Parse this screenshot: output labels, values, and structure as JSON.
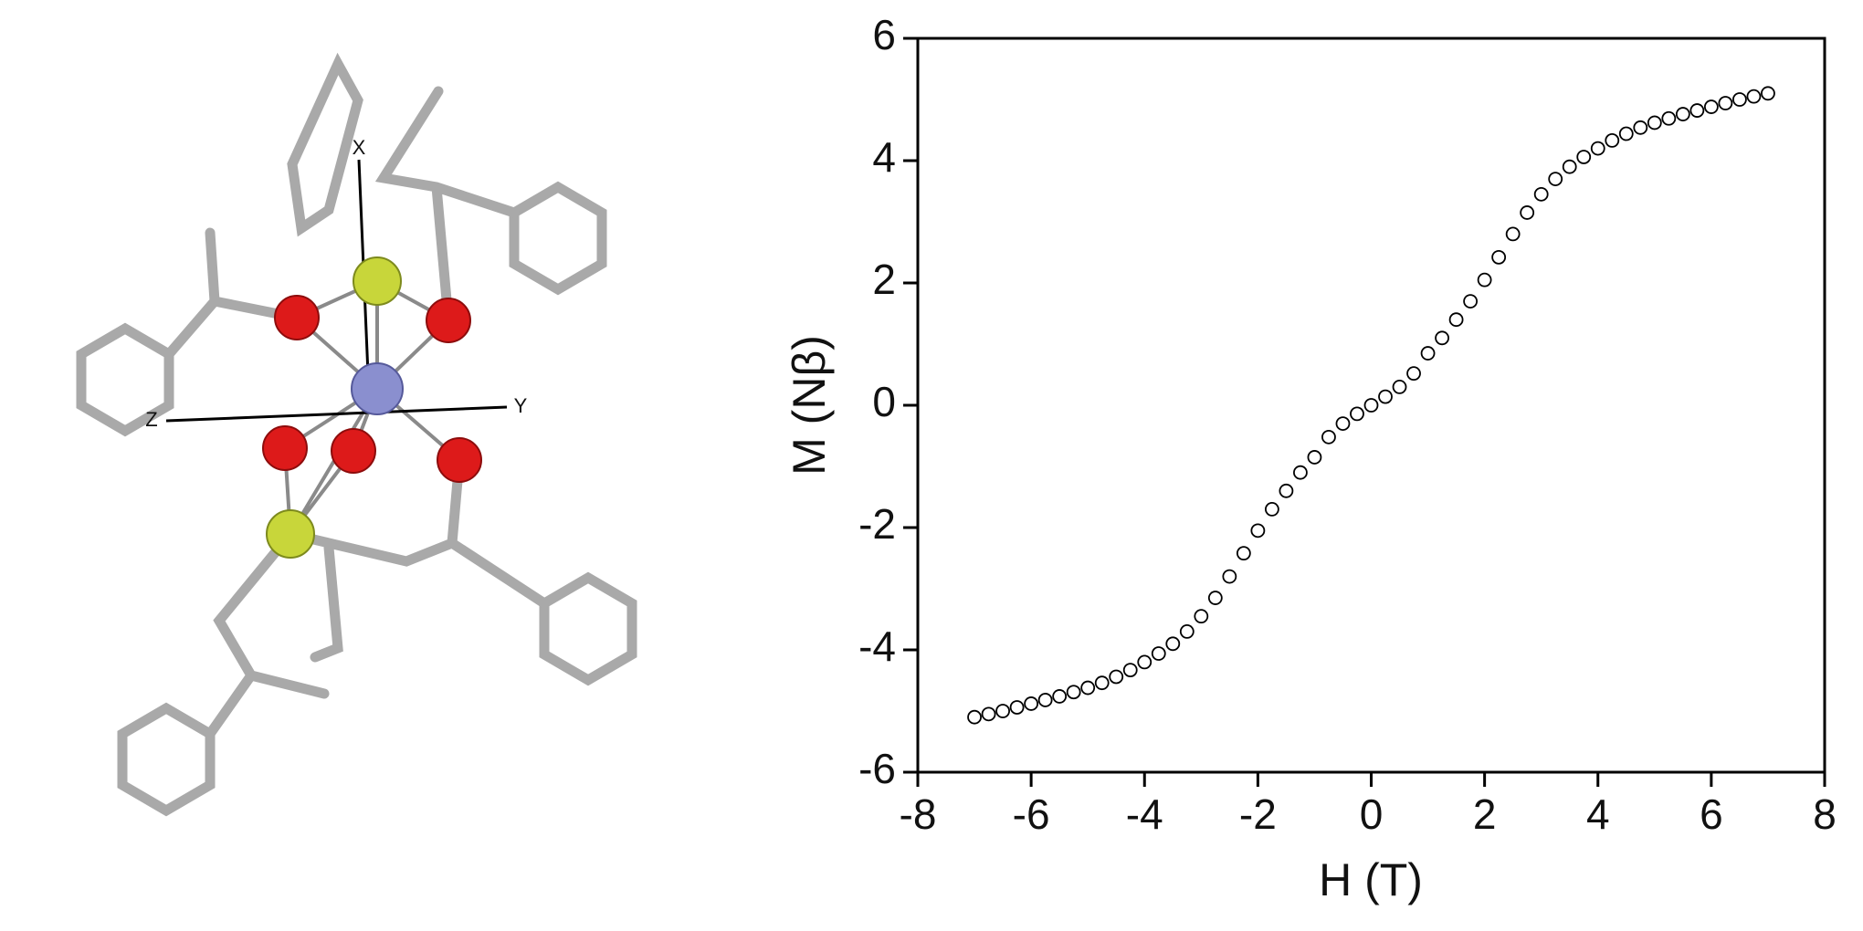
{
  "molecule": {
    "axes": [
      "X",
      "Y",
      "Z"
    ]
  },
  "chart_data": {
    "type": "scatter",
    "xlabel": "H (T)",
    "ylabel": "M (Nβ)",
    "xlim": [
      -8,
      8
    ],
    "ylim": [
      -6,
      6
    ],
    "xticks": [
      -8,
      -6,
      -4,
      -2,
      0,
      2,
      4,
      6,
      8
    ],
    "yticks": [
      -6,
      -4,
      -2,
      0,
      2,
      4,
      6
    ],
    "color": "#000000",
    "series": [
      {
        "name": "M",
        "x": [
          -7,
          -6.75,
          -6.5,
          -6.25,
          -6,
          -5.75,
          -5.5,
          -5.25,
          -5,
          -4.75,
          -4.5,
          -4.25,
          -4,
          -3.75,
          -3.5,
          -3.25,
          -3,
          -2.75,
          -2.5,
          -2.25,
          -2,
          -1.75,
          -1.5,
          -1.25,
          -1,
          -0.75,
          -0.5,
          -0.25,
          0,
          0.25,
          0.5,
          0.75,
          1,
          1.25,
          1.5,
          1.75,
          2,
          2.25,
          2.5,
          2.75,
          3,
          3.25,
          3.5,
          3.75,
          4,
          4.25,
          4.5,
          4.75,
          5,
          5.25,
          5.5,
          5.75,
          6,
          6.25,
          6.5,
          6.75,
          7
        ],
        "values": [
          -5.1,
          -5.05,
          -5.0,
          -4.94,
          -4.88,
          -4.82,
          -4.76,
          -4.69,
          -4.62,
          -4.54,
          -4.44,
          -4.33,
          -4.2,
          -4.06,
          -3.9,
          -3.7,
          -3.45,
          -3.15,
          -2.8,
          -2.42,
          -2.05,
          -1.7,
          -1.4,
          -1.1,
          -0.85,
          -0.52,
          -0.3,
          -0.14,
          0,
          0.14,
          0.3,
          0.52,
          0.85,
          1.1,
          1.4,
          1.7,
          2.05,
          2.42,
          2.8,
          3.15,
          3.45,
          3.7,
          3.9,
          4.06,
          4.2,
          4.33,
          4.44,
          4.54,
          4.62,
          4.69,
          4.76,
          4.82,
          4.88,
          4.94,
          5.0,
          5.05,
          5.1
        ]
      }
    ]
  }
}
